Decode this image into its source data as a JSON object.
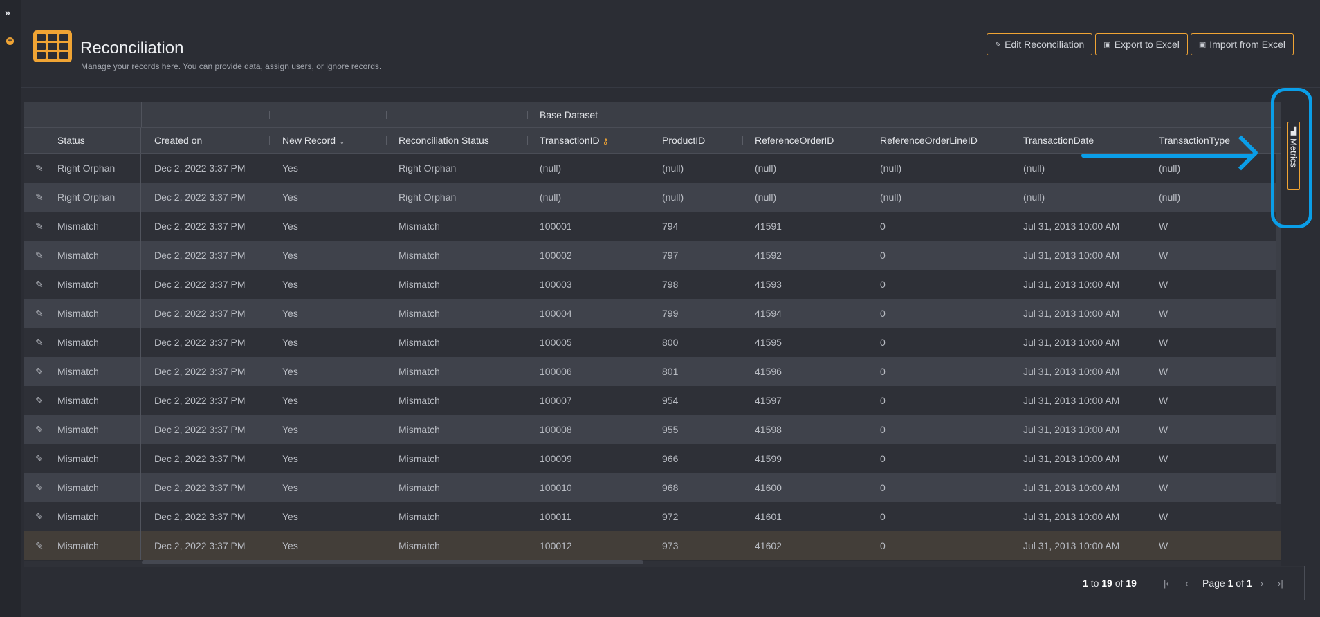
{
  "rail": {
    "expand_icon": "chevrons-right-icon",
    "add_icon": "plus-circle-icon"
  },
  "page": {
    "title": "Reconciliation",
    "subtitle": "Manage your records here. You can provide data, assign users, or ignore records.",
    "logo_icon": "table-grid-icon"
  },
  "actions": {
    "edit": {
      "label": "Edit Reconciliation",
      "icon": "edit-icon"
    },
    "export": {
      "label": "Export to Excel",
      "icon": "excel-icon"
    },
    "import": {
      "label": "Import from Excel",
      "icon": "excel-icon"
    }
  },
  "grid": {
    "group_header": "Base Dataset",
    "columns": {
      "status": "Status",
      "created_on": "Created on",
      "new_record": "New Record",
      "recon_status": "Reconciliation Status",
      "transaction_id": "TransactionID",
      "product_id": "ProductID",
      "reference_order_id": "ReferenceOrderID",
      "reference_order_line_id": "ReferenceOrderLineID",
      "transaction_date": "TransactionDate",
      "transaction_type": "TransactionType"
    },
    "sort_icon": "arrow-down-icon",
    "key_icon": "key-icon",
    "rows": [
      {
        "status": "Right Orphan",
        "created_on": "Dec 2, 2022 3:37 PM",
        "new_record": "Yes",
        "recon_status": "Right Orphan",
        "transaction_id": "(null)",
        "product_id": "(null)",
        "reference_order_id": "(null)",
        "reference_order_line_id": "(null)",
        "transaction_date": "(null)",
        "transaction_type": "(null)"
      },
      {
        "status": "Right Orphan",
        "created_on": "Dec 2, 2022 3:37 PM",
        "new_record": "Yes",
        "recon_status": "Right Orphan",
        "transaction_id": "(null)",
        "product_id": "(null)",
        "reference_order_id": "(null)",
        "reference_order_line_id": "(null)",
        "transaction_date": "(null)",
        "transaction_type": "(null)"
      },
      {
        "status": "Mismatch",
        "created_on": "Dec 2, 2022 3:37 PM",
        "new_record": "Yes",
        "recon_status": "Mismatch",
        "transaction_id": "100001",
        "product_id": "794",
        "reference_order_id": "41591",
        "reference_order_line_id": "0",
        "transaction_date": "Jul 31, 2013 10:00 AM",
        "transaction_type": "W"
      },
      {
        "status": "Mismatch",
        "created_on": "Dec 2, 2022 3:37 PM",
        "new_record": "Yes",
        "recon_status": "Mismatch",
        "transaction_id": "100002",
        "product_id": "797",
        "reference_order_id": "41592",
        "reference_order_line_id": "0",
        "transaction_date": "Jul 31, 2013 10:00 AM",
        "transaction_type": "W"
      },
      {
        "status": "Mismatch",
        "created_on": "Dec 2, 2022 3:37 PM",
        "new_record": "Yes",
        "recon_status": "Mismatch",
        "transaction_id": "100003",
        "product_id": "798",
        "reference_order_id": "41593",
        "reference_order_line_id": "0",
        "transaction_date": "Jul 31, 2013 10:00 AM",
        "transaction_type": "W"
      },
      {
        "status": "Mismatch",
        "created_on": "Dec 2, 2022 3:37 PM",
        "new_record": "Yes",
        "recon_status": "Mismatch",
        "transaction_id": "100004",
        "product_id": "799",
        "reference_order_id": "41594",
        "reference_order_line_id": "0",
        "transaction_date": "Jul 31, 2013 10:00 AM",
        "transaction_type": "W"
      },
      {
        "status": "Mismatch",
        "created_on": "Dec 2, 2022 3:37 PM",
        "new_record": "Yes",
        "recon_status": "Mismatch",
        "transaction_id": "100005",
        "product_id": "800",
        "reference_order_id": "41595",
        "reference_order_line_id": "0",
        "transaction_date": "Jul 31, 2013 10:00 AM",
        "transaction_type": "W"
      },
      {
        "status": "Mismatch",
        "created_on": "Dec 2, 2022 3:37 PM",
        "new_record": "Yes",
        "recon_status": "Mismatch",
        "transaction_id": "100006",
        "product_id": "801",
        "reference_order_id": "41596",
        "reference_order_line_id": "0",
        "transaction_date": "Jul 31, 2013 10:00 AM",
        "transaction_type": "W"
      },
      {
        "status": "Mismatch",
        "created_on": "Dec 2, 2022 3:37 PM",
        "new_record": "Yes",
        "recon_status": "Mismatch",
        "transaction_id": "100007",
        "product_id": "954",
        "reference_order_id": "41597",
        "reference_order_line_id": "0",
        "transaction_date": "Jul 31, 2013 10:00 AM",
        "transaction_type": "W"
      },
      {
        "status": "Mismatch",
        "created_on": "Dec 2, 2022 3:37 PM",
        "new_record": "Yes",
        "recon_status": "Mismatch",
        "transaction_id": "100008",
        "product_id": "955",
        "reference_order_id": "41598",
        "reference_order_line_id": "0",
        "transaction_date": "Jul 31, 2013 10:00 AM",
        "transaction_type": "W"
      },
      {
        "status": "Mismatch",
        "created_on": "Dec 2, 2022 3:37 PM",
        "new_record": "Yes",
        "recon_status": "Mismatch",
        "transaction_id": "100009",
        "product_id": "966",
        "reference_order_id": "41599",
        "reference_order_line_id": "0",
        "transaction_date": "Jul 31, 2013 10:00 AM",
        "transaction_type": "W"
      },
      {
        "status": "Mismatch",
        "created_on": "Dec 2, 2022 3:37 PM",
        "new_record": "Yes",
        "recon_status": "Mismatch",
        "transaction_id": "100010",
        "product_id": "968",
        "reference_order_id": "41600",
        "reference_order_line_id": "0",
        "transaction_date": "Jul 31, 2013 10:00 AM",
        "transaction_type": "W"
      },
      {
        "status": "Mismatch",
        "created_on": "Dec 2, 2022 3:37 PM",
        "new_record": "Yes",
        "recon_status": "Mismatch",
        "transaction_id": "100011",
        "product_id": "972",
        "reference_order_id": "41601",
        "reference_order_line_id": "0",
        "transaction_date": "Jul 31, 2013 10:00 AM",
        "transaction_type": "W"
      },
      {
        "status": "Mismatch",
        "created_on": "Dec 2, 2022 3:37 PM",
        "new_record": "Yes",
        "recon_status": "Mismatch",
        "transaction_id": "100012",
        "product_id": "973",
        "reference_order_id": "41602",
        "reference_order_line_id": "0",
        "transaction_date": "Jul 31, 2013 10:00 AM",
        "transaction_type": "W"
      }
    ],
    "sidebar": {
      "metrics_label": "Metrics",
      "metrics_icon": "chart-icon"
    }
  },
  "pagination": {
    "from": "1",
    "to_word": "to",
    "to": "19",
    "of_word": "of",
    "total": "19",
    "page_word": "Page",
    "page": "1",
    "page_of_word": "of",
    "pages": "1",
    "first_icon": "first-page-icon",
    "prev_icon": "chevron-left-icon",
    "next_icon": "chevron-right-icon",
    "last_icon": "last-page-icon"
  },
  "colors": {
    "accent": "#f0a434",
    "annotation": "#0a9ee8",
    "background": "#2b2d34"
  }
}
